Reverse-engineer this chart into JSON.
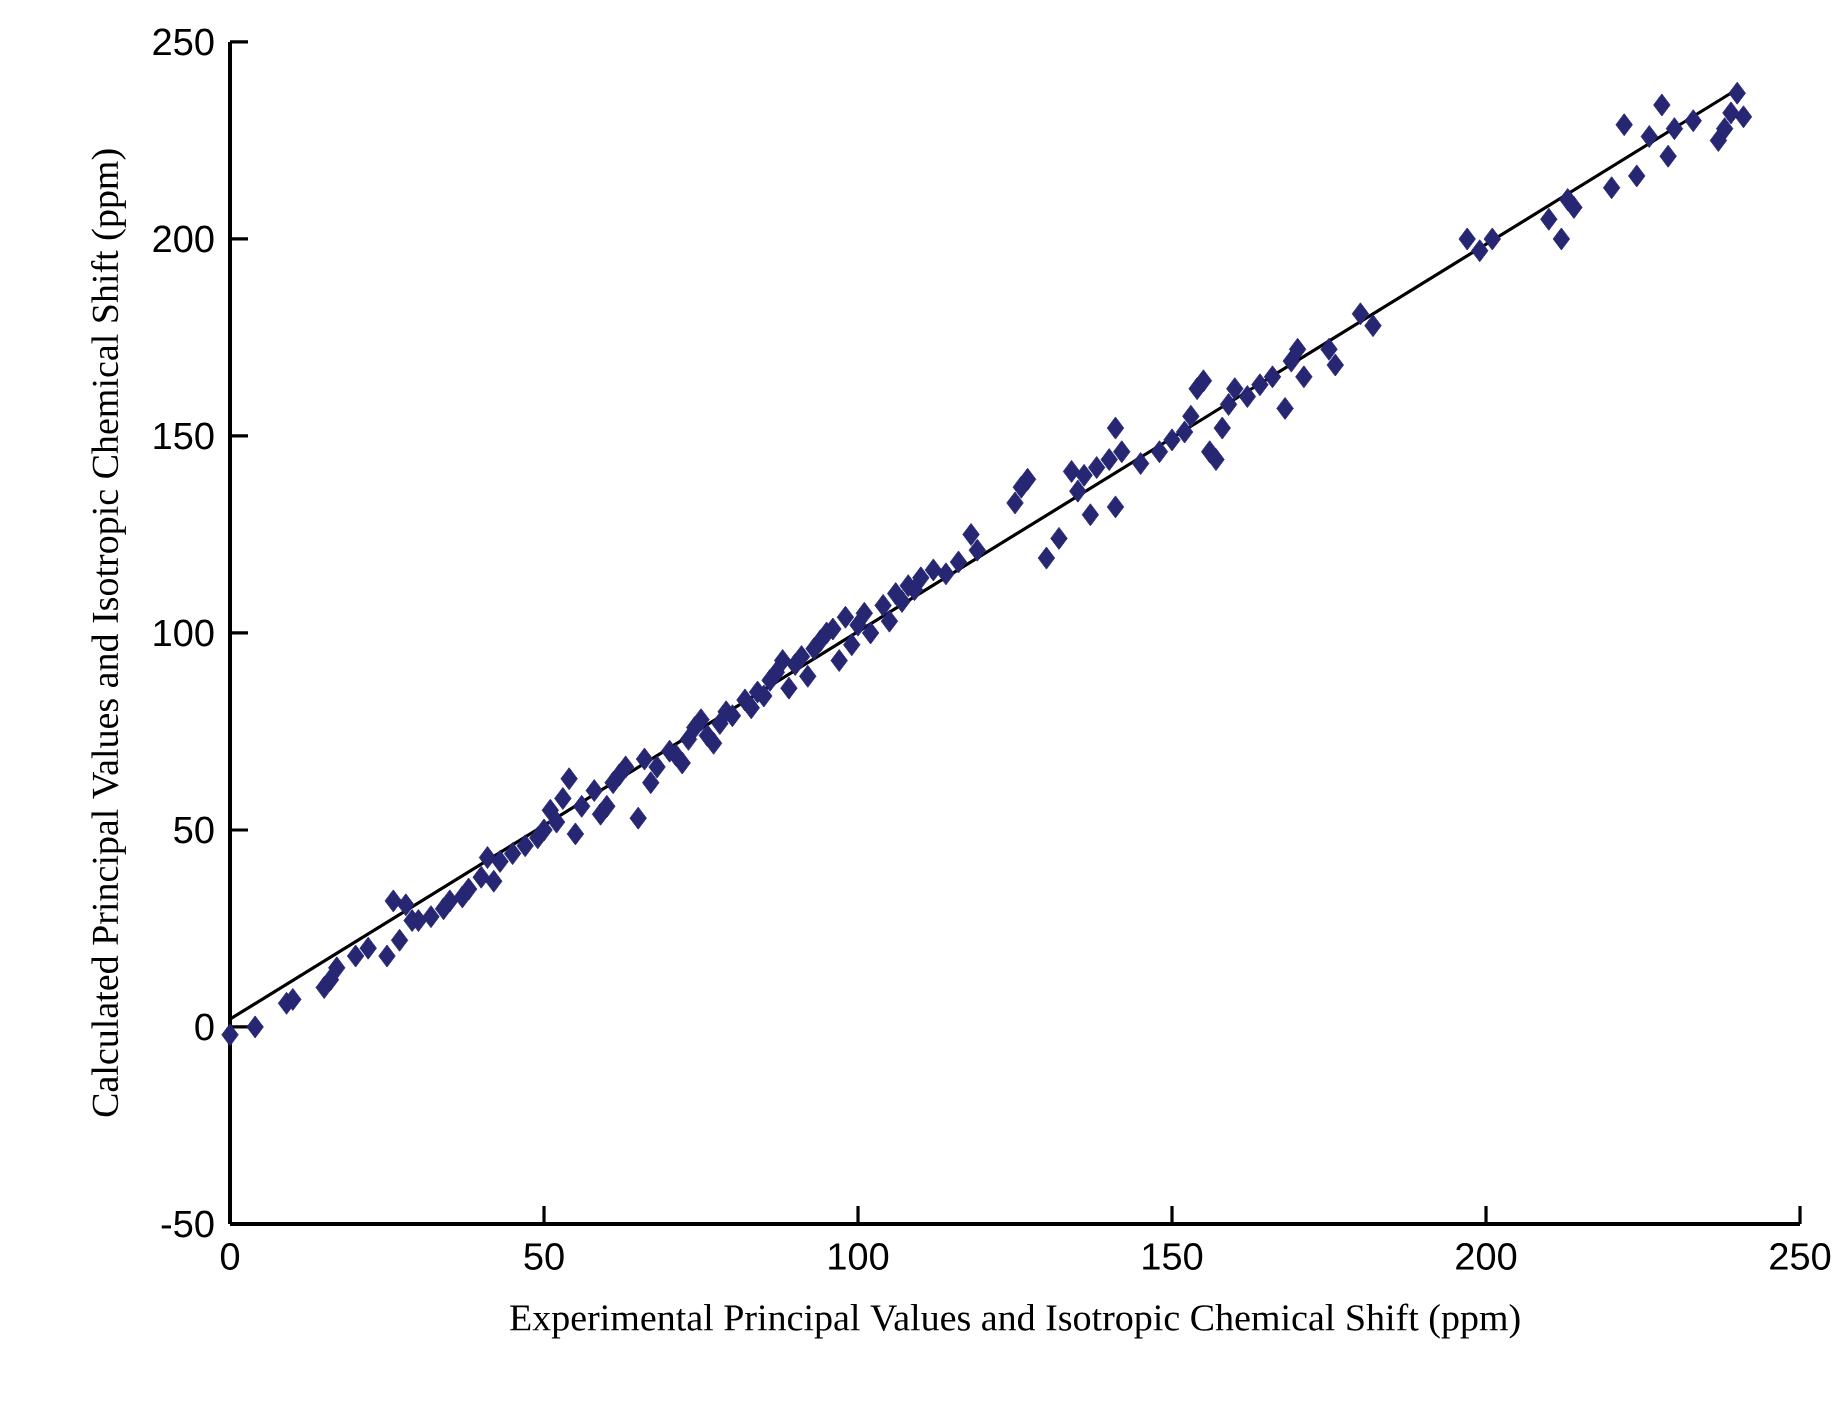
{
  "chart_data": {
    "type": "scatter",
    "xlabel": "Experimental Principal Values and Isotropic Chemical Shift (ppm)",
    "ylabel": "Calculated Principal Values and Isotropic Chemical Shift (ppm)",
    "xlim": [
      0,
      250
    ],
    "ylim": [
      -50,
      250
    ],
    "xticks": [
      0,
      50,
      100,
      150,
      200,
      250
    ],
    "yticks": [
      -50,
      0,
      50,
      100,
      150,
      200,
      250
    ],
    "series": [
      {
        "type": "scatter",
        "marker": "diamond",
        "color": "#262673",
        "x": [
          0,
          4,
          9,
          10,
          15,
          16,
          17,
          20,
          22,
          25,
          26,
          27,
          28,
          29,
          30,
          32,
          34,
          35,
          37,
          38,
          40,
          41,
          42,
          43,
          45,
          47,
          49,
          50,
          51,
          52,
          53,
          54,
          55,
          56,
          58,
          59,
          60,
          61,
          62,
          63,
          65,
          66,
          67,
          68,
          70,
          71,
          72,
          73,
          74,
          75,
          76,
          77,
          78,
          79,
          80,
          82,
          83,
          84,
          85,
          86,
          87,
          88,
          89,
          90,
          91,
          92,
          93,
          94,
          95,
          96,
          97,
          98,
          99,
          100,
          101,
          102,
          104,
          105,
          106,
          107,
          108,
          109,
          110,
          112,
          114,
          116,
          118,
          119,
          125,
          126,
          127,
          130,
          132,
          134,
          135,
          136,
          137,
          138,
          140,
          141,
          141,
          142,
          145,
          148,
          150,
          152,
          153,
          154,
          155,
          156,
          157,
          158,
          159,
          160,
          162,
          164,
          166,
          168,
          169,
          170,
          171,
          175,
          176,
          180,
          182,
          197,
          199,
          201,
          210,
          212,
          213,
          214,
          220,
          222,
          224,
          226,
          228,
          229,
          230,
          233,
          237,
          238,
          239,
          240,
          241
        ],
        "values": [
          -2,
          0,
          6,
          7,
          10,
          12,
          15,
          18,
          20,
          18,
          32,
          22,
          31,
          27,
          27,
          28,
          30,
          32,
          33,
          35,
          38,
          43,
          37,
          42,
          44,
          46,
          48,
          50,
          55,
          52,
          58,
          63,
          49,
          56,
          60,
          54,
          56,
          62,
          64,
          66,
          53,
          68,
          62,
          66,
          70,
          69,
          67,
          73,
          76,
          78,
          74,
          72,
          77,
          80,
          79,
          83,
          81,
          85,
          84,
          88,
          90,
          93,
          86,
          92,
          94,
          89,
          96,
          98,
          100,
          101,
          93,
          104,
          97,
          102,
          105,
          100,
          107,
          103,
          110,
          108,
          112,
          111,
          114,
          116,
          115,
          118,
          125,
          121,
          133,
          137,
          139,
          119,
          124,
          141,
          136,
          140,
          130,
          142,
          144,
          132,
          152,
          146,
          143,
          146,
          149,
          151,
          155,
          162,
          164,
          146,
          144,
          152,
          158,
          162,
          160,
          163,
          165,
          157,
          169,
          172,
          165,
          172,
          168,
          181,
          178,
          200,
          197,
          200,
          205,
          200,
          210,
          208,
          213,
          229,
          216,
          226,
          234,
          221,
          228,
          230,
          225,
          228,
          232,
          237,
          231
        ]
      },
      {
        "type": "line",
        "marker": "none",
        "color": "#000000",
        "x": [
          0,
          240
        ],
        "values": [
          2,
          238
        ]
      }
    ]
  }
}
